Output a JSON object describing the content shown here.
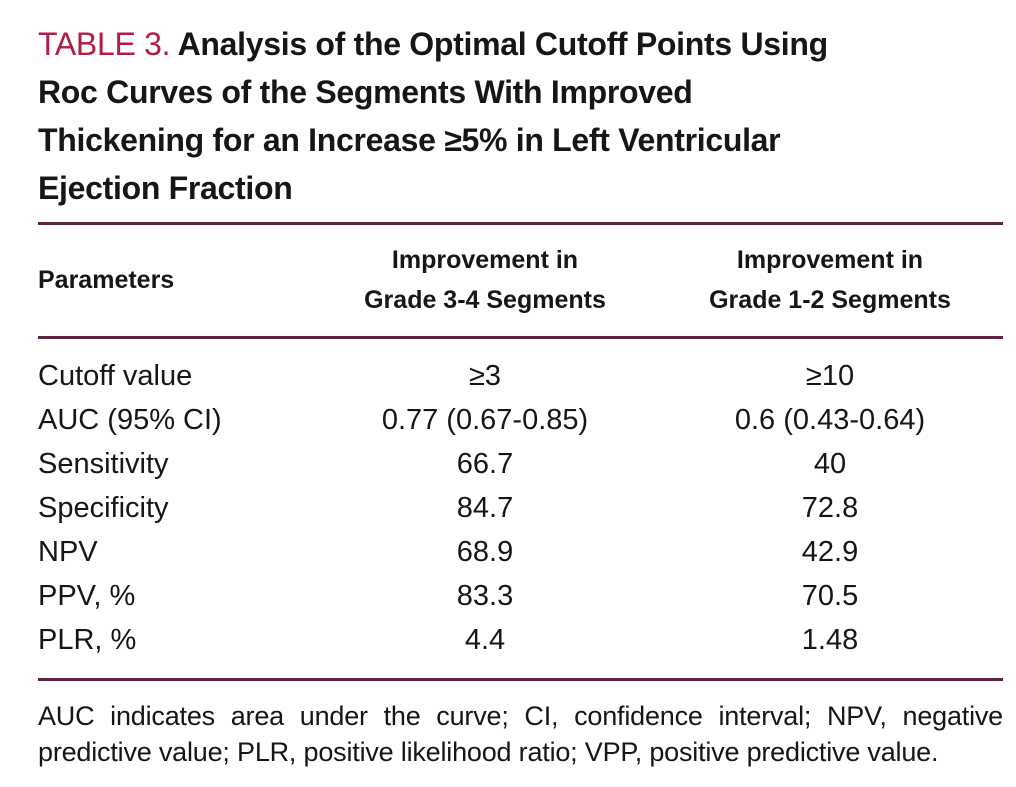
{
  "colors": {
    "accent_red": "#b11e44",
    "rule_maroon": "#5f2444",
    "text_black": "#161616",
    "background": "#ffffff"
  },
  "caption": {
    "label": "TABLE 3.",
    "title_full": "Analysis of the Optimal Cutoff Points Using Roc Curves of the Segments With Improved Thickening for an Increase ≥5% in Left Ventricular Ejection Fraction",
    "title_lines": [
      "Analysis of the Optimal Cutoff Points Using",
      "Roc Curves of the Segments With Improved",
      "Thickening for an Increase ≥5% in Left Ventricular",
      "Ejection Fraction"
    ]
  },
  "table": {
    "columns": {
      "param_header": "Parameters",
      "grade34": {
        "line1": "Improvement in",
        "line2": "Grade 3-4 Segments"
      },
      "grade12": {
        "line1": "Improvement in",
        "line2": "Grade 1-2 Segments"
      }
    },
    "rows": [
      {
        "param": "Cutoff value",
        "grade34": "≥3",
        "grade12": "≥10"
      },
      {
        "param": "AUC (95% CI)",
        "grade34": "0.77 (0.67-0.85)",
        "grade12": "0.6 (0.43-0.64)"
      },
      {
        "param": "Sensitivity",
        "grade34": "66.7",
        "grade12": "40"
      },
      {
        "param": "Specificity",
        "grade34": "84.7",
        "grade12": "72.8"
      },
      {
        "param": "NPV",
        "grade34": "68.9",
        "grade12": "42.9"
      },
      {
        "param": "PPV, %",
        "grade34": "83.3",
        "grade12": "70.5"
      },
      {
        "param": "PLR, %",
        "grade34": "4.4",
        "grade12": "1.48"
      }
    ],
    "footnote": "AUC indicates area under the curve; CI, confidence interval; NPV, negative predictive value; PLR, positive likelihood ratio;  VPP, positive predictive value."
  }
}
